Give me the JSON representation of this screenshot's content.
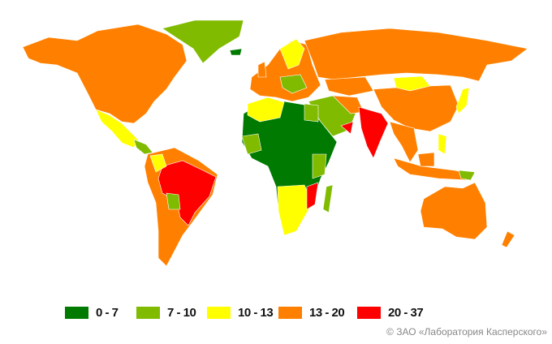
{
  "legend": [
    {
      "label": "0 - 7",
      "color": "#007a00"
    },
    {
      "label": "7 - 10",
      "color": "#80bb00"
    },
    {
      "label": "10 - 13",
      "color": "#ffff00"
    },
    {
      "label": "13 - 20",
      "color": "#ff8000"
    },
    {
      "label": "20 - 37",
      "color": "#ff0000"
    }
  ],
  "copyright": "© ЗАО «Лаборатория Касперского»"
}
